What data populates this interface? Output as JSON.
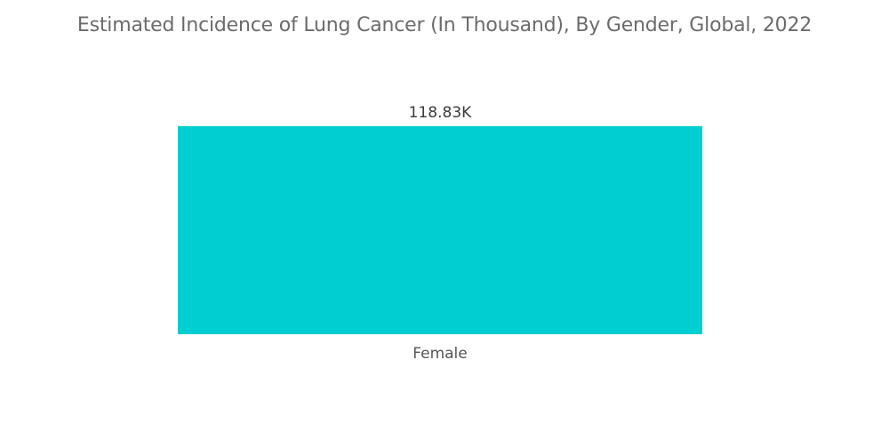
{
  "chart_data": {
    "type": "bar",
    "title": "Estimated Incidence of Lung Cancer (In Thousand), By Gender, Global, 2022",
    "categories": [
      "Female"
    ],
    "values": [
      118.83
    ],
    "data_labels": [
      "118.83K"
    ],
    "xlabel": "",
    "ylabel": "",
    "ylim": [
      0,
      118.83
    ],
    "grid": false,
    "legend": "none",
    "colors": {
      "bar": "#00ced1",
      "title": "#6b6b6b",
      "label": "#3a3a3a"
    }
  }
}
